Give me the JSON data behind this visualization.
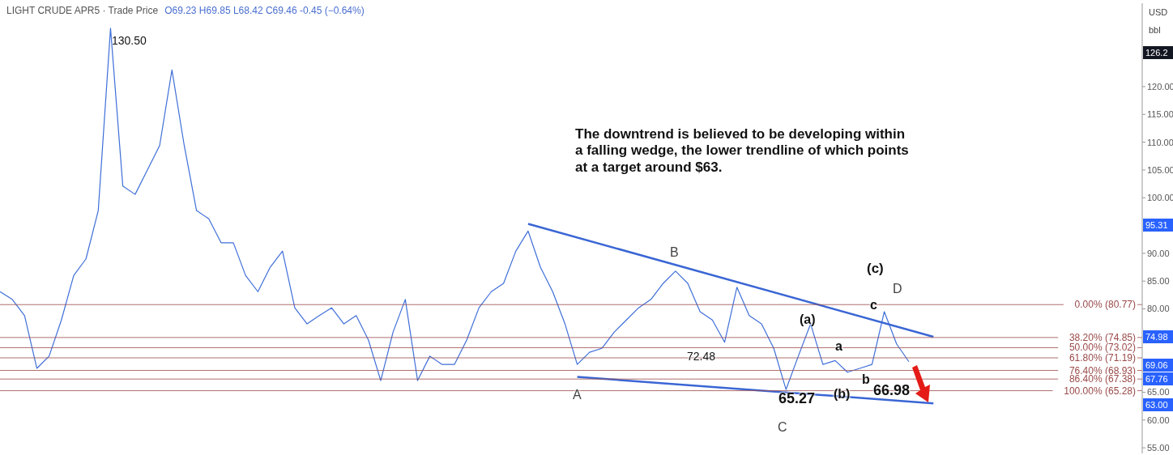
{
  "chart_data": {
    "type": "line",
    "title": "LIGHT CRUDE APR5 · Trade Price",
    "subtitle": "O69.23 H69.85 L68.42 C69.46 -0.45 (−0.64%)",
    "ylabel": "USD bbl",
    "categories": [
      null,
      null,
      null,
      null,
      null,
      null,
      null,
      null,
      null,
      null,
      null,
      null,
      null,
      null,
      null,
      null,
      null,
      null,
      null,
      null,
      null,
      null,
      null,
      null,
      null,
      null,
      null,
      null,
      null,
      null,
      null,
      null,
      null,
      null,
      null,
      null,
      null,
      null,
      null,
      null,
      null,
      null,
      null,
      null,
      null,
      null,
      null,
      null,
      null,
      null,
      null,
      null,
      null,
      null,
      null,
      null,
      null,
      null,
      null,
      null,
      null,
      null,
      null,
      null,
      null,
      null,
      null,
      null,
      null,
      null,
      null,
      null,
      null,
      null,
      null,
      null,
      null,
      null,
      null,
      null,
      null,
      null,
      null,
      null,
      null,
      null,
      null,
      null,
      null,
      null,
      null,
      null,
      null,
      null
    ],
    "series": [
      {
        "color": "#3f6fd8",
        "values": [
          83.1,
          81.7,
          78.8,
          69.3,
          71.5,
          78.0,
          86.0,
          89.0,
          97.7,
          130.5,
          102.1,
          100.6,
          105.0,
          109.4,
          123.0,
          109.4,
          97.7,
          96.2,
          91.9,
          91.9,
          86.0,
          83.1,
          87.5,
          90.4,
          80.2,
          77.3,
          78.8,
          80.2,
          77.3,
          78.8,
          74.4,
          67.1,
          75.8,
          81.7,
          67.1,
          71.5,
          70.0,
          70.0,
          74.4,
          80.2,
          83.1,
          84.6,
          90.4,
          94.0,
          87.5,
          83.1,
          77.3,
          70.0,
          72.2,
          72.9,
          75.8,
          78.0,
          80.2,
          81.7,
          84.6,
          86.8,
          84.6,
          79.5,
          78.0,
          74.0,
          83.9,
          78.8,
          77.3,
          72.9,
          65.5,
          71.5,
          77.3,
          70.0,
          70.7,
          68.6,
          69.3,
          70.0,
          79.5,
          73.7,
          70.5,
          null,
          null,
          null,
          null,
          null,
          null,
          null,
          null,
          null,
          null,
          null,
          null,
          null,
          null,
          null,
          null,
          null,
          null,
          null
        ]
      },
      {
        "color": "#3a66d4",
        "values": [
          null,
          null,
          null,
          null,
          null,
          null,
          null,
          null,
          null,
          null,
          null,
          null,
          null,
          null,
          null,
          null,
          null,
          null,
          null,
          null,
          null,
          null,
          null,
          null,
          null,
          null,
          null,
          null,
          null,
          null,
          null,
          null,
          null,
          null,
          null,
          null,
          null,
          null,
          null,
          null,
          null,
          null,
          null,
          95.31,
          null,
          null,
          null,
          null,
          null,
          null,
          null,
          null,
          null,
          null,
          null,
          null,
          null,
          null,
          null,
          null,
          null,
          null,
          null,
          null,
          null,
          null,
          null,
          null,
          null,
          null,
          null,
          null,
          null,
          null,
          null,
          null,
          74.98,
          null,
          null,
          null,
          null,
          null,
          null,
          null,
          null,
          null,
          null,
          null,
          null,
          null,
          null,
          null,
          null,
          null
        ]
      },
      {
        "color": "#3a66d4",
        "values": [
          null,
          null,
          null,
          null,
          null,
          null,
          null,
          null,
          null,
          null,
          null,
          null,
          null,
          null,
          null,
          null,
          null,
          null,
          null,
          null,
          null,
          null,
          null,
          null,
          null,
          null,
          null,
          null,
          null,
          null,
          null,
          null,
          null,
          null,
          null,
          null,
          null,
          null,
          null,
          null,
          null,
          null,
          null,
          null,
          null,
          null,
          null,
          67.76,
          null,
          null,
          null,
          null,
          null,
          null,
          null,
          null,
          null,
          null,
          null,
          null,
          null,
          null,
          null,
          null,
          null,
          null,
          null,
          null,
          null,
          null,
          null,
          null,
          null,
          null,
          null,
          null,
          63.0,
          null,
          null,
          null,
          null,
          null,
          null,
          null,
          null,
          null,
          null,
          null,
          null,
          null,
          null,
          null,
          null,
          null
        ]
      }
    ],
    "ylim": [
      54,
      135
    ],
    "yticks": [
      {
        "value": 55,
        "label": "55.00"
      },
      {
        "value": 60,
        "label": "60.00"
      },
      {
        "value": 65,
        "label": "65.00"
      },
      {
        "value": 80,
        "label": "80.00"
      },
      {
        "value": 85,
        "label": "85.00"
      },
      {
        "value": 90,
        "label": "90.00"
      },
      {
        "value": 100,
        "label": "100.00"
      },
      {
        "value": 105,
        "label": "105.00"
      },
      {
        "value": 110,
        "label": "110.00"
      },
      {
        "value": 115,
        "label": "115.00"
      },
      {
        "value": 120,
        "label": "120.00"
      }
    ],
    "tick_labels": "y",
    "grid": false,
    "marker": "none",
    "line_style": "solid",
    "ref_lines": [
      {
        "axis": "y",
        "value": 80.77,
        "label": "0.00% (80.77)",
        "color": "#9a4a4a"
      },
      {
        "axis": "y",
        "value": 74.85,
        "label": "38.20% (74.85)",
        "color": "#9a4a4a"
      },
      {
        "axis": "y",
        "value": 73.02,
        "label": "50.00% (73.02)",
        "color": "#9a4a4a"
      },
      {
        "axis": "y",
        "value": 71.19,
        "label": "61.80% (71.19)",
        "color": "#9a4a4a"
      },
      {
        "axis": "y",
        "value": 68.93,
        "label": "76.40% (68.93)",
        "color": "#9a4a4a"
      },
      {
        "axis": "y",
        "value": 67.38,
        "label": "86.40% (67.38)",
        "color": "#9a4a4a"
      },
      {
        "axis": "y",
        "value": 65.28,
        "label": "100.00% (65.28)",
        "color": "#9a4a4a"
      }
    ],
    "annotations": [
      "130.50",
      "72.48",
      "A",
      "B",
      "C",
      "D",
      "(a)",
      "a",
      "(b)",
      "b",
      "(c)",
      "c",
      "65.27",
      "66.98",
      "The downtrend is believed to be developing within a falling wedge, the lower trendline of which points at a target around $63.",
      "126.2",
      "95.31",
      "74.98",
      "69.06",
      "67.76",
      "63.00"
    ]
  }
}
